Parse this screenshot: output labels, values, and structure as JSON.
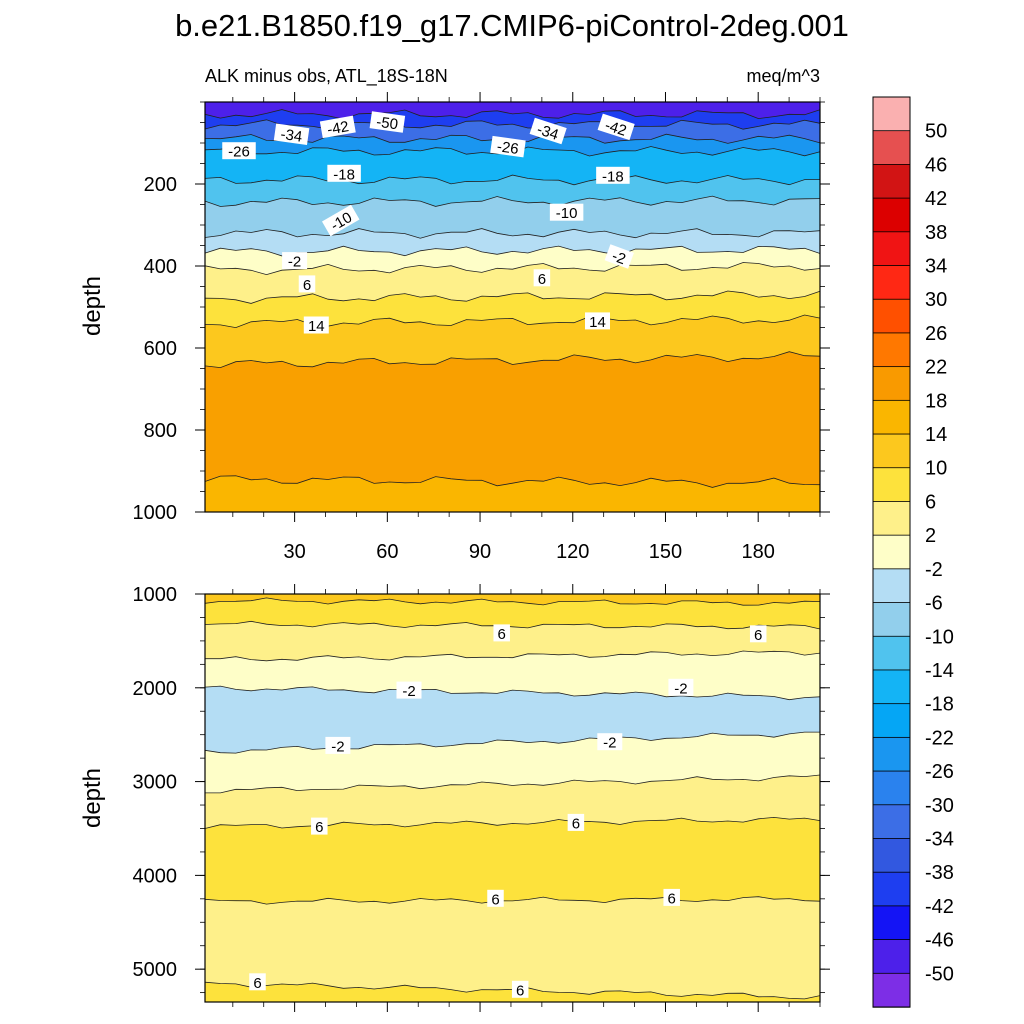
{
  "title": "b.e21.B1850.f19_g17.CMIP6-piControl-2deg.001",
  "subtitle_left": "ALK minus obs, ATL_18S-18N",
  "subtitle_right": "meq/m^3",
  "chart_data": [
    {
      "type": "contour",
      "panel": "upper",
      "variable": "ALK minus obs",
      "region": "ATL_18S-18N",
      "units": "meq/m^3",
      "xlabel": "",
      "ylabel": "depth",
      "xlim": [
        1,
        200
      ],
      "ylim": [
        1000,
        0
      ],
      "x_ticks": [
        30,
        60,
        90,
        120,
        150,
        180
      ],
      "y_ticks": [
        200,
        400,
        600,
        800,
        1000
      ],
      "y_tick_labels": [
        "200",
        "400",
        "600",
        "800",
        "1000"
      ],
      "bands": [
        {
          "value": -50,
          "color": "#4d20ea",
          "depth_left": 30,
          "depth_right": 30
        },
        {
          "value": -42,
          "color": "#1e3ef0",
          "depth_left": 55,
          "depth_right": 55
        },
        {
          "value": -34,
          "color": "#3c6ee6",
          "depth_left": 90,
          "depth_right": 90
        },
        {
          "value": -26,
          "color": "#1a96f0",
          "depth_left": 120,
          "depth_right": 120
        },
        {
          "value": -18,
          "color": "#14b4f5",
          "depth_left": 190,
          "depth_right": 190
        },
        {
          "value": -14,
          "color": "#50c3ee",
          "depth_left": 245,
          "depth_right": 240
        },
        {
          "value": -10,
          "color": "#92cfec",
          "depth_left": 320,
          "depth_right": 320
        },
        {
          "value": -6,
          "color": "#b4ddf4",
          "depth_left": 365,
          "depth_right": 360
        },
        {
          "value": -2,
          "color": "#fefec8",
          "depth_left": 410,
          "depth_right": 400
        },
        {
          "value": 2,
          "color": "#fef08a",
          "depth_left": 480,
          "depth_right": 470
        },
        {
          "value": 6,
          "color": "#fde23c",
          "depth_left": 540,
          "depth_right": 530
        },
        {
          "value": 10,
          "color": "#fcc81e",
          "depth_left": 640,
          "depth_right": 620
        },
        {
          "value": 14,
          "color": "#f9a000",
          "depth_left": 920,
          "depth_right": 930
        },
        {
          "value": 18,
          "color": "#fab600",
          "depth_left": 1000,
          "depth_right": 1000
        }
      ],
      "contour_labels": [
        {
          "text": "-50",
          "x": 60,
          "depth": 50,
          "rot": 8
        },
        {
          "text": "-42",
          "x": 44,
          "depth": 62,
          "rot": -10
        },
        {
          "text": "-42",
          "x": 134,
          "depth": 62,
          "rot": 18
        },
        {
          "text": "-34",
          "x": 29,
          "depth": 80,
          "rot": 8
        },
        {
          "text": "-34",
          "x": 112,
          "depth": 72,
          "rot": 18
        },
        {
          "text": "-26",
          "x": 12,
          "depth": 120,
          "rot": 0
        },
        {
          "text": "-26",
          "x": 99,
          "depth": 110,
          "rot": 8
        },
        {
          "text": "-18",
          "x": 46,
          "depth": 175,
          "rot": 0
        },
        {
          "text": "-18",
          "x": 133,
          "depth": 180,
          "rot": 0
        },
        {
          "text": "-10",
          "x": 45,
          "depth": 290,
          "rot": -30
        },
        {
          "text": "-10",
          "x": 118,
          "depth": 270,
          "rot": 0
        },
        {
          "text": "-2",
          "x": 30,
          "depth": 388,
          "rot": 0
        },
        {
          "text": "-2",
          "x": 135,
          "depth": 378,
          "rot": 20
        },
        {
          "text": "6",
          "x": 34,
          "depth": 445,
          "rot": 0
        },
        {
          "text": "6",
          "x": 110,
          "depth": 430,
          "rot": 0
        },
        {
          "text": "14",
          "x": 37,
          "depth": 545,
          "rot": 0
        },
        {
          "text": "14",
          "x": 128,
          "depth": 535,
          "rot": 0
        }
      ]
    },
    {
      "type": "contour",
      "panel": "lower",
      "variable": "ALK minus obs",
      "region": "ATL_18S-18N",
      "units": "meq/m^3",
      "xlabel": "",
      "ylabel": "depth",
      "xlim": [
        1,
        200
      ],
      "ylim": [
        5350,
        1000
      ],
      "y_ticks": [
        1000,
        2000,
        3000,
        4000,
        5000
      ],
      "y_tick_labels": [
        "1000",
        "2000",
        "3000",
        "4000",
        "5000"
      ],
      "bands": [
        {
          "value": 10,
          "color": "#fcc81e",
          "depth_left": 1070,
          "depth_right": 1100
        },
        {
          "value": 6,
          "color": "#fde23c",
          "depth_left": 1320,
          "depth_right": 1350
        },
        {
          "value": 2,
          "color": "#fef08a",
          "depth_left": 1700,
          "depth_right": 1620
        },
        {
          "value": -2,
          "color": "#fefec8",
          "depth_left": 2000,
          "depth_right": 2100
        },
        {
          "value": -6,
          "color": "#b4ddf4",
          "depth_left": 2680,
          "depth_right": 2480
        },
        {
          "value": -2,
          "color": "#fefec8",
          "depth_left": 3100,
          "depth_right": 2950
        },
        {
          "value": 2,
          "color": "#fef08a",
          "depth_left": 3480,
          "depth_right": 3400
        },
        {
          "value": 6,
          "color": "#fde23c",
          "depth_left": 4280,
          "depth_right": 4250
        },
        {
          "value": 2,
          "color": "#fef08a",
          "depth_left": 5150,
          "depth_right": 5300
        },
        {
          "value": 6,
          "color": "#fde23c",
          "depth_left": 5350,
          "depth_right": 5350
        }
      ],
      "contour_labels": [
        {
          "text": "6",
          "x": 97,
          "depth": 1420,
          "rot": 0
        },
        {
          "text": "6",
          "x": 180,
          "depth": 1430,
          "rot": 0
        },
        {
          "text": "-2",
          "x": 67,
          "depth": 2030,
          "rot": 0
        },
        {
          "text": "-2",
          "x": 155,
          "depth": 2000,
          "rot": 0
        },
        {
          "text": "-2",
          "x": 44,
          "depth": 2620,
          "rot": 0
        },
        {
          "text": "-2",
          "x": 132,
          "depth": 2580,
          "rot": 0
        },
        {
          "text": "6",
          "x": 38,
          "depth": 3480,
          "rot": 0
        },
        {
          "text": "6",
          "x": 121,
          "depth": 3440,
          "rot": 0
        },
        {
          "text": "6",
          "x": 95,
          "depth": 4250,
          "rot": 0
        },
        {
          "text": "6",
          "x": 152,
          "depth": 4240,
          "rot": 0
        },
        {
          "text": "6",
          "x": 18,
          "depth": 5140,
          "rot": 0
        },
        {
          "text": "6",
          "x": 103,
          "depth": 5220,
          "rot": 0
        }
      ]
    }
  ],
  "colorbar": {
    "levels": [
      "50",
      "46",
      "42",
      "38",
      "34",
      "30",
      "26",
      "22",
      "18",
      "14",
      "10",
      "6",
      "2",
      "-2",
      "-6",
      "-10",
      "-14",
      "-18",
      "-22",
      "-26",
      "-30",
      "-34",
      "-38",
      "-42",
      "-46",
      "-50"
    ],
    "colors": [
      "#fab0b0",
      "#e65050",
      "#d21414",
      "#dc0000",
      "#f01414",
      "#ff2814",
      "#ff5000",
      "#ff7800",
      "#f99a00",
      "#fab600",
      "#fcc81e",
      "#fde23c",
      "#fef08a",
      "#fefec8",
      "#b4ddf4",
      "#92cfec",
      "#50c3ee",
      "#14b4f5",
      "#05a6f5",
      "#1a96f0",
      "#2a82ee",
      "#3c6ee6",
      "#3258e0",
      "#1e3ef0",
      "#1414f5",
      "#4d20ea",
      "#7d2ee6"
    ]
  }
}
